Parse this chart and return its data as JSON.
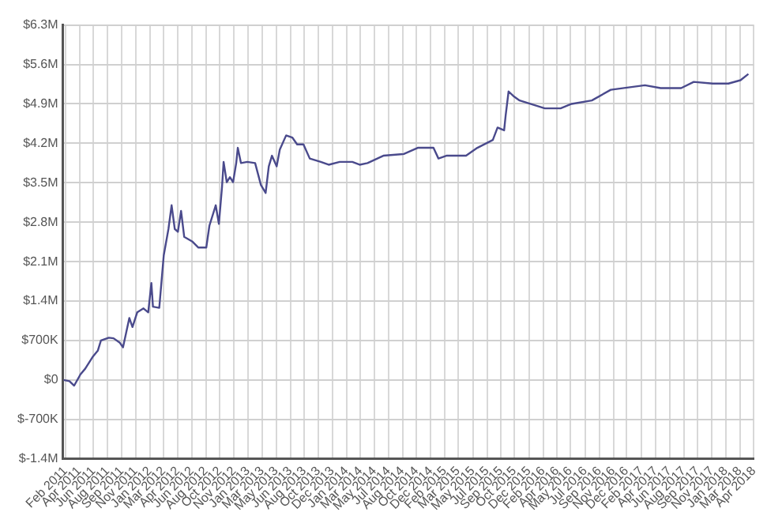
{
  "chart_data": {
    "type": "line",
    "grid": true,
    "line_style": "solid",
    "xlim": [
      "2011-02-15",
      "2018-04-30"
    ],
    "ylim": [
      -1400000,
      6300000
    ],
    "yticks": [
      {
        "value": -1400000,
        "label": "$-1.4M"
      },
      {
        "value": -700000,
        "label": "$-700K"
      },
      {
        "value": 0,
        "label": "$0"
      },
      {
        "value": 700000,
        "label": "$700K"
      },
      {
        "value": 1400000,
        "label": "$1.4M"
      },
      {
        "value": 2100000,
        "label": "$2.1M"
      },
      {
        "value": 2800000,
        "label": "$2.8M"
      },
      {
        "value": 3500000,
        "label": "$3.5M"
      },
      {
        "value": 4200000,
        "label": "$4.2M"
      },
      {
        "value": 4900000,
        "label": "$4.9M"
      },
      {
        "value": 5600000,
        "label": "$5.6M"
      },
      {
        "value": 6300000,
        "label": "$6.3M"
      }
    ],
    "xticks": [
      {
        "value": "2011-02-25",
        "label": "Feb 2011"
      },
      {
        "value": "2011-04-19",
        "label": "Apr 2011"
      },
      {
        "value": "2011-06-12",
        "label": "Jun 2011"
      },
      {
        "value": "2011-08-04",
        "label": "Aug 2011"
      },
      {
        "value": "2011-09-27",
        "label": "Sep 2011"
      },
      {
        "value": "2011-11-19",
        "label": "Nov 2011"
      },
      {
        "value": "2012-01-12",
        "label": "Jan 2012"
      },
      {
        "value": "2012-03-05",
        "label": "Mar 2012"
      },
      {
        "value": "2012-04-28",
        "label": "Apr 2012"
      },
      {
        "value": "2012-06-20",
        "label": "Jun 2012"
      },
      {
        "value": "2012-08-13",
        "label": "Aug 2012"
      },
      {
        "value": "2012-10-05",
        "label": "Oct 2012"
      },
      {
        "value": "2012-11-28",
        "label": "Nov 2012"
      },
      {
        "value": "2013-01-20",
        "label": "Jan 2013"
      },
      {
        "value": "2013-03-15",
        "label": "Mar 2013"
      },
      {
        "value": "2013-05-07",
        "label": "May 2013"
      },
      {
        "value": "2013-06-30",
        "label": "Jun 2013"
      },
      {
        "value": "2013-08-22",
        "label": "Aug 2013"
      },
      {
        "value": "2013-10-15",
        "label": "Oct 2013"
      },
      {
        "value": "2013-12-07",
        "label": "Dec 2013"
      },
      {
        "value": "2014-01-30",
        "label": "Jan 2014"
      },
      {
        "value": "2014-03-24",
        "label": "Mar 2014"
      },
      {
        "value": "2014-05-17",
        "label": "May 2014"
      },
      {
        "value": "2014-07-09",
        "label": "Jul 2014"
      },
      {
        "value": "2014-08-31",
        "label": "Aug 2014"
      },
      {
        "value": "2014-10-24",
        "label": "Oct 2014"
      },
      {
        "value": "2014-12-17",
        "label": "Dec 2014"
      },
      {
        "value": "2015-02-08",
        "label": "Feb 2015"
      },
      {
        "value": "2015-03-31",
        "label": "Mar 2015"
      },
      {
        "value": "2015-05-26",
        "label": "May 2015"
      },
      {
        "value": "2015-07-19",
        "label": "Jul 2015"
      },
      {
        "value": "2015-09-10",
        "label": "Sep 2015"
      },
      {
        "value": "2015-10-31",
        "label": "Oct 2015"
      },
      {
        "value": "2015-12-26",
        "label": "Dec 2015"
      },
      {
        "value": "2016-02-18",
        "label": "Feb 2016"
      },
      {
        "value": "2016-04-11",
        "label": "Apr 2016"
      },
      {
        "value": "2016-05-31",
        "label": "May 2016"
      },
      {
        "value": "2016-07-27",
        "label": "Jul 2016"
      },
      {
        "value": "2016-09-19",
        "label": "Sep 2016"
      },
      {
        "value": "2016-11-11",
        "label": "Nov 2016"
      },
      {
        "value": "2016-12-31",
        "label": "Dec 2016"
      },
      {
        "value": "2017-02-26",
        "label": "Feb 2017"
      },
      {
        "value": "2017-04-21",
        "label": "Apr 2017"
      },
      {
        "value": "2017-06-13",
        "label": "Jun 2017"
      },
      {
        "value": "2017-08-06",
        "label": "Aug 2017"
      },
      {
        "value": "2017-09-28",
        "label": "Sep 2017"
      },
      {
        "value": "2017-11-21",
        "label": "Nov 2017"
      },
      {
        "value": "2018-01-13",
        "label": "Jan 2018"
      },
      {
        "value": "2018-03-08",
        "label": "Mar 2018"
      },
      {
        "value": "2018-04-30",
        "label": "Apr 2018"
      }
    ],
    "series": [
      {
        "color": "#4a4a8c",
        "x": [
          "2011-02-18",
          "2011-03-12",
          "2011-03-30",
          "2011-04-23",
          "2011-05-11",
          "2011-06-10",
          "2011-06-28",
          "2011-07-10",
          "2011-08-09",
          "2011-08-27",
          "2011-09-20",
          "2011-10-02",
          "2011-10-14",
          "2011-10-26",
          "2011-11-07",
          "2011-11-25",
          "2011-12-19",
          "2012-01-06",
          "2012-01-18",
          "2012-01-24",
          "2012-02-17",
          "2012-03-05",
          "2012-03-23",
          "2012-04-04",
          "2012-04-16",
          "2012-04-28",
          "2012-05-10",
          "2012-05-22",
          "2012-06-21",
          "2012-07-15",
          "2012-08-14",
          "2012-08-26",
          "2012-09-19",
          "2012-10-01",
          "2012-10-13",
          "2012-10-19",
          "2012-10-31",
          "2012-11-12",
          "2012-11-24",
          "2012-12-06",
          "2012-12-12",
          "2012-12-24",
          "2013-01-17",
          "2013-02-16",
          "2013-03-10",
          "2013-03-28",
          "2013-04-09",
          "2013-04-21",
          "2013-05-09",
          "2013-05-21",
          "2013-06-14",
          "2013-07-08",
          "2013-07-26",
          "2013-08-19",
          "2013-09-12",
          "2013-10-24",
          "2013-11-23",
          "2014-01-04",
          "2014-02-21",
          "2014-03-21",
          "2014-04-20",
          "2014-06-19",
          "2014-09-05",
          "2014-10-28",
          "2014-12-27",
          "2015-01-15",
          "2015-02-14",
          "2015-04-30",
          "2015-06-12",
          "2015-08-10",
          "2015-08-28",
          "2015-09-22",
          "2015-09-28",
          "2015-10-09",
          "2015-10-27",
          "2015-11-20",
          "2016-02-24",
          "2016-04-24",
          "2016-06-05",
          "2016-08-21",
          "2016-11-01",
          "2017-03-11",
          "2017-05-10",
          "2017-07-27",
          "2017-09-13",
          "2017-11-24",
          "2018-01-23",
          "2018-03-10",
          "2018-04-09"
        ],
        "values": [
          0,
          -20000,
          -100000,
          100000,
          200000,
          420000,
          520000,
          700000,
          750000,
          740000,
          660000,
          580000,
          840000,
          1100000,
          940000,
          1200000,
          1270000,
          1200000,
          1720000,
          1300000,
          1280000,
          2210000,
          2680000,
          3100000,
          2680000,
          2630000,
          3000000,
          2540000,
          2460000,
          2350000,
          2350000,
          2740000,
          3100000,
          2770000,
          3430000,
          3870000,
          3510000,
          3600000,
          3510000,
          3850000,
          4120000,
          3850000,
          3870000,
          3850000,
          3460000,
          3320000,
          3790000,
          3980000,
          3790000,
          4090000,
          4340000,
          4300000,
          4180000,
          4180000,
          3930000,
          3870000,
          3820000,
          3870000,
          3870000,
          3820000,
          3850000,
          3980000,
          4010000,
          4120000,
          4120000,
          3930000,
          3980000,
          3980000,
          4120000,
          4260000,
          4480000,
          4430000,
          4700000,
          5120000,
          5040000,
          4960000,
          4820000,
          4820000,
          4900000,
          4960000,
          5150000,
          5230000,
          5180000,
          5180000,
          5290000,
          5260000,
          5260000,
          5320000,
          5430000
        ]
      }
    ]
  }
}
